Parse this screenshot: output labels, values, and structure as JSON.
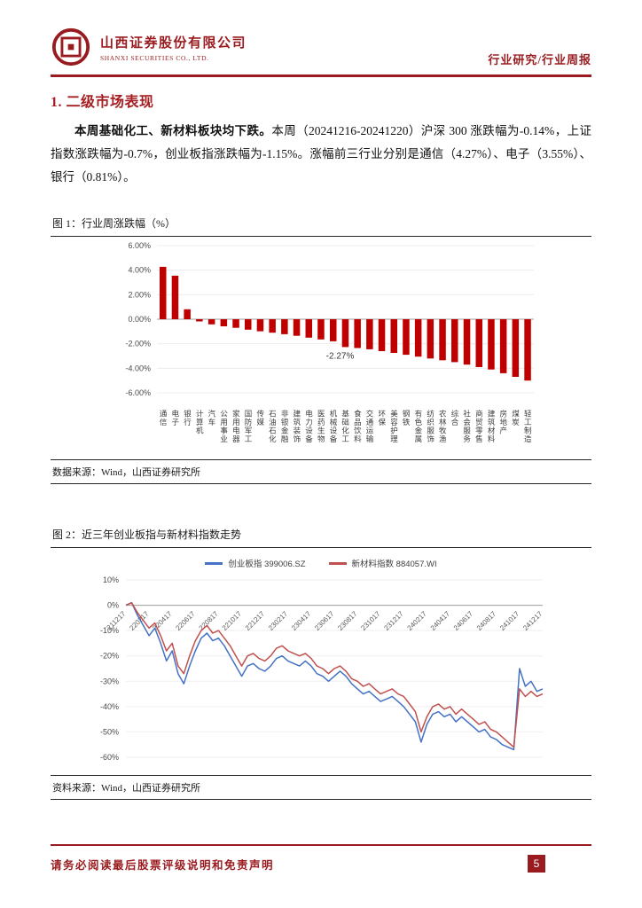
{
  "header": {
    "company_cn": "山西证券股份有限公司",
    "company_en": "SHANXI SECURITIES CO., LTD.",
    "report_type": "行业研究/行业周报"
  },
  "section": {
    "title": "1. 二级市场表现"
  },
  "paragraph": {
    "bold": "本周基础化工、新材料板块均下跌。",
    "text": "本周（20241216-20241220）沪深 300 涨跌幅为-0.14%，上证指数涨跌幅为-0.7%，创业板指涨跌幅为-1.15%。涨幅前三行业分别是通信（4.27%）、电子（3.55%）、银行（0.81%）。"
  },
  "figure1": {
    "caption": "图 1：行业周涨跌幅（%）",
    "source": "数据来源：Wind，山西证券研究所"
  },
  "figure2": {
    "caption": "图 2：近三年创业板指与新材料指数走势",
    "source": "资料来源：Wind，山西证券研究所"
  },
  "footer": {
    "disclaimer": "请务必阅读最后股票评级说明和免责声明",
    "page": "5"
  },
  "colors": {
    "accent": "#9A1B1F",
    "bar": "#C00000",
    "line_blue": "#4472C4",
    "line_red": "#C0504D"
  },
  "chart_data": [
    {
      "type": "bar",
      "title": "行业周涨跌幅（%）",
      "categories": [
        "通信",
        "电子",
        "银行",
        "计算机",
        "汽车",
        "公用事业",
        "家用电器",
        "国防军工",
        "传媒",
        "石油石化",
        "非银金融",
        "建筑装饰",
        "电力设备",
        "医药生物",
        "机械设备",
        "基础化工",
        "食品饮料",
        "交通运输",
        "环保",
        "美容护理",
        "钢铁",
        "有色金属",
        "纺织服饰",
        "农林牧渔",
        "综合",
        "社会服务",
        "商贸零售",
        "建筑材料",
        "房地产",
        "煤炭",
        "轻工制造"
      ],
      "values": [
        4.27,
        3.55,
        0.81,
        -0.18,
        -0.42,
        -0.58,
        -0.7,
        -0.85,
        -0.98,
        -1.1,
        -1.22,
        -1.35,
        -1.5,
        -1.65,
        -1.8,
        -2.27,
        -2.35,
        -2.45,
        -2.6,
        -2.75,
        -2.9,
        -3.05,
        -3.2,
        -3.35,
        -3.5,
        -3.7,
        -3.9,
        -4.1,
        -4.4,
        -4.7,
        -5.0
      ],
      "ylim": [
        -6,
        6
      ],
      "ytick_step": 2,
      "ytick_decimals": 2,
      "grid": true,
      "legend_position": "none",
      "bar_color": "#C00000",
      "annotation": {
        "text": "-2.27%",
        "index": 15
      }
    },
    {
      "type": "line",
      "title": "近三年创业板指与新材料指数走势",
      "x_ticks": [
        "211217",
        "220217",
        "220417",
        "220617",
        "220817",
        "221017",
        "221217",
        "230217",
        "230417",
        "230617",
        "230817",
        "231017",
        "231217",
        "240217",
        "240417",
        "240617",
        "240817",
        "241017",
        "241217"
      ],
      "tick_every": 4,
      "ylim": [
        -60,
        10
      ],
      "ytick_step": 10,
      "grid": true,
      "legend_position": "top",
      "series": [
        {
          "name": "创业板指 399006.SZ",
          "color": "#4472C4",
          "values": [
            0,
            1,
            -4,
            -8,
            -12,
            -9,
            -15,
            -22,
            -18,
            -27,
            -31,
            -24,
            -18,
            -13,
            -11,
            -14,
            -13,
            -16,
            -20,
            -24,
            -28,
            -24,
            -23,
            -25,
            -26,
            -24,
            -21,
            -20,
            -22,
            -23,
            -24,
            -22,
            -24,
            -27,
            -28,
            -30,
            -28,
            -26,
            -28,
            -31,
            -33,
            -35,
            -34,
            -36,
            -38,
            -37,
            -36,
            -38,
            -40,
            -43,
            -46,
            -54,
            -47,
            -43,
            -42,
            -44,
            -43,
            -46,
            -44,
            -46,
            -48,
            -50,
            -49,
            -52,
            -53,
            -55,
            -56,
            -57,
            -25,
            -32,
            -30,
            -34,
            -33
          ]
        },
        {
          "name": "新材料指数 884057.WI",
          "color": "#C0504D",
          "values": [
            0,
            1,
            -3,
            -6,
            -9,
            -7,
            -12,
            -18,
            -15,
            -24,
            -27,
            -20,
            -14,
            -10,
            -8,
            -11,
            -10,
            -13,
            -16,
            -20,
            -24,
            -20,
            -19,
            -21,
            -22,
            -20,
            -17,
            -16,
            -18,
            -19,
            -20,
            -19,
            -21,
            -24,
            -25,
            -27,
            -25,
            -24,
            -26,
            -29,
            -30,
            -32,
            -31,
            -33,
            -35,
            -34,
            -33,
            -35,
            -36,
            -39,
            -42,
            -50,
            -44,
            -40,
            -39,
            -41,
            -40,
            -43,
            -41,
            -43,
            -45,
            -47,
            -46,
            -49,
            -50,
            -52,
            -54,
            -56,
            -33,
            -36,
            -34,
            -36,
            -35
          ]
        }
      ]
    }
  ]
}
